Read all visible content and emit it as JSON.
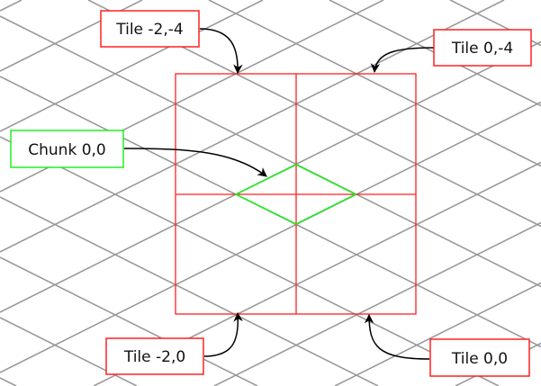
{
  "labels": {
    "tile_m2_m4": "Tile -2,-4",
    "tile_0_m4": "Tile 0,-4",
    "chunk_0_0": "Chunk 0,0",
    "tile_m2_0": "Tile -2,0",
    "tile_0_0": "Tile 0,0"
  },
  "colors": {
    "grid": "#999999",
    "tile": "#ff2020",
    "chunk": "#22ee22",
    "arrow": "#000000"
  }
}
